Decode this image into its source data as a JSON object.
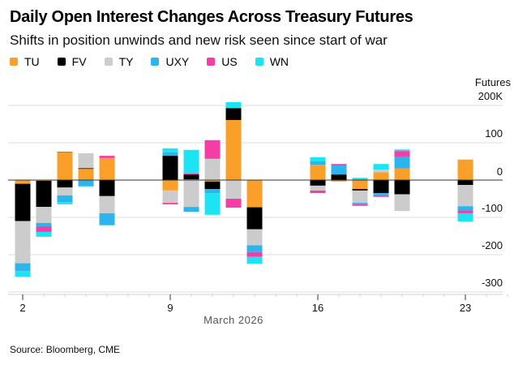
{
  "header": {
    "title": "Daily Open Interest Changes Across Treasury Futures",
    "subtitle": "Shifts in position unwinds and new risk seen since start of war"
  },
  "footer": {
    "source": "Source: Bloomberg, CME"
  },
  "chart_data": {
    "type": "bar",
    "stacked": true,
    "title": "Daily Open Interest Changes Across Treasury Futures",
    "subtitle": "Shifts in position unwinds and new risk seen since start of war",
    "xlabel": "March 2026",
    "ylabel": "Futures",
    "y_unit_label": "Futures",
    "ylim": [
      -300,
      200
    ],
    "yticks": [
      200,
      100,
      0,
      -100,
      -200,
      -300
    ],
    "ytick_labels": [
      "200K",
      "100",
      "0",
      "-100",
      "-200",
      "-300"
    ],
    "xlim_days": [
      2,
      25
    ],
    "xticks": [
      2,
      9,
      16,
      23
    ],
    "xtick_labels": [
      "2",
      "9",
      "16",
      "23"
    ],
    "grid": true,
    "legend_position": "top-left",
    "categories": [
      2,
      3,
      4,
      5,
      6,
      9,
      10,
      11,
      12,
      13,
      16,
      17,
      18,
      19,
      20,
      23
    ],
    "series": [
      {
        "name": "TU",
        "color": "#f99f2a",
        "values": [
          -10,
          -2,
          74,
          30,
          59,
          -28,
          2,
          -4,
          161,
          -73,
          41,
          -4,
          -24,
          21,
          31,
          55
        ]
      },
      {
        "name": "FV",
        "color": "#000000",
        "values": [
          -100,
          -70,
          -20,
          2,
          -43,
          65,
          13,
          -20,
          32,
          -59,
          -15,
          15,
          -4,
          -35,
          -38,
          -13
        ]
      },
      {
        "name": "TY",
        "color": "#cccccc",
        "values": [
          -113,
          -43,
          -21,
          40,
          -46,
          -33,
          -72,
          57,
          -50,
          -43,
          -13,
          0,
          -33,
          7,
          -45,
          -57
        ]
      },
      {
        "name": "UXY",
        "color": "#2bb5ef",
        "values": [
          -19,
          -9,
          -18,
          -16,
          -31,
          9,
          -13,
          -11,
          0,
          -18,
          9,
          24,
          -4,
          -6,
          32,
          -11
        ]
      },
      {
        "name": "US",
        "color": "#f53ea5",
        "values": [
          -2,
          -15,
          2,
          0,
          6,
          -4,
          3,
          50,
          -24,
          -13,
          -7,
          4,
          -4,
          -4,
          15,
          -8
        ]
      },
      {
        "name": "WN",
        "color": "#1ce4f4",
        "values": [
          -15,
          -13,
          -6,
          -2,
          -2,
          11,
          63,
          -58,
          16,
          -18,
          11,
          0,
          6,
          15,
          4,
          -22
        ]
      }
    ]
  }
}
